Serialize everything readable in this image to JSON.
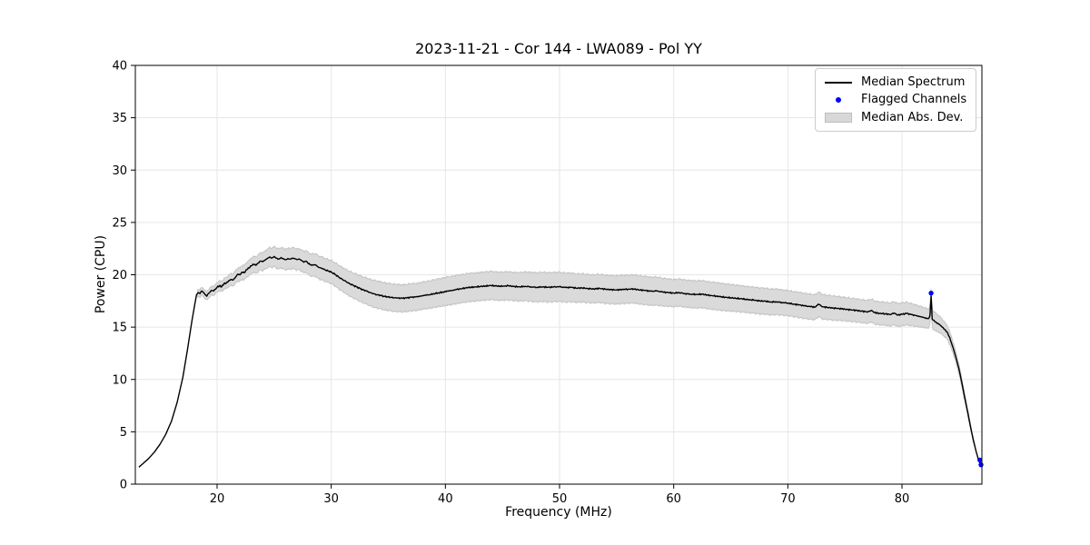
{
  "chart_data": {
    "type": "line",
    "title": "2023-11-21 - Cor 144 - LWA089 - Pol YY",
    "xlabel": "Frequency (MHz)",
    "ylabel": "Power (CPU)",
    "xlim": [
      12.84,
      87.0
    ],
    "ylim": [
      0,
      40
    ],
    "xticks": [
      20,
      30,
      40,
      50,
      60,
      70,
      80
    ],
    "yticks": [
      0,
      5,
      10,
      15,
      20,
      25,
      30,
      35,
      40
    ],
    "grid": true,
    "grid_color": "#e6e6e6",
    "spine_color": "#000000",
    "legend": {
      "position": "upper right",
      "entries": [
        {
          "label": "Median Spectrum",
          "type": "line",
          "color": "#000000"
        },
        {
          "label": "Flagged Channels",
          "type": "marker",
          "color": "#0000ff"
        },
        {
          "label": "Median Abs. Dev.",
          "type": "patch",
          "color": "#d8d8d8"
        }
      ]
    },
    "series": [
      {
        "name": "Median Spectrum",
        "type": "line",
        "color": "#000000",
        "points": [
          [
            13.15,
            1.62
          ],
          [
            13.5,
            1.95
          ],
          [
            14,
            2.45
          ],
          [
            14.5,
            3.05
          ],
          [
            15,
            3.8
          ],
          [
            15.5,
            4.75
          ],
          [
            16,
            6.0
          ],
          [
            16.5,
            7.8
          ],
          [
            17,
            10.2
          ],
          [
            17.4,
            12.8
          ],
          [
            17.8,
            15.6
          ],
          [
            18.05,
            17.2
          ],
          [
            18.2,
            18.1
          ],
          [
            18.35,
            18.3
          ],
          [
            18.5,
            18.2
          ],
          [
            18.65,
            18.45
          ],
          [
            18.8,
            18.3
          ],
          [
            18.95,
            18.1
          ],
          [
            19.1,
            17.95
          ],
          [
            19.25,
            18.2
          ],
          [
            19.4,
            18.35
          ],
          [
            19.55,
            18.5
          ],
          [
            19.7,
            18.45
          ],
          [
            19.85,
            18.6
          ],
          [
            20,
            18.8
          ],
          [
            20.2,
            18.95
          ],
          [
            20.4,
            18.85
          ],
          [
            20.6,
            19.15
          ],
          [
            20.8,
            19.2
          ],
          [
            21,
            19.4
          ],
          [
            21.2,
            19.55
          ],
          [
            21.4,
            19.5
          ],
          [
            21.6,
            19.75
          ],
          [
            21.8,
            20.05
          ],
          [
            22,
            20.0
          ],
          [
            22.2,
            20.25
          ],
          [
            22.4,
            20.2
          ],
          [
            22.6,
            20.5
          ],
          [
            22.8,
            20.65
          ],
          [
            23,
            20.85
          ],
          [
            23.2,
            21.0
          ],
          [
            23.4,
            20.9
          ],
          [
            23.6,
            21.1
          ],
          [
            23.8,
            21.3
          ],
          [
            24,
            21.25
          ],
          [
            24.2,
            21.4
          ],
          [
            24.4,
            21.55
          ],
          [
            24.6,
            21.7
          ],
          [
            24.8,
            21.6
          ],
          [
            25,
            21.75
          ],
          [
            25.2,
            21.6
          ],
          [
            25.4,
            21.5
          ],
          [
            25.6,
            21.65
          ],
          [
            25.8,
            21.55
          ],
          [
            26,
            21.45
          ],
          [
            26.2,
            21.55
          ],
          [
            26.4,
            21.5
          ],
          [
            26.6,
            21.6
          ],
          [
            26.8,
            21.55
          ],
          [
            27,
            21.45
          ],
          [
            27.2,
            21.5
          ],
          [
            27.4,
            21.35
          ],
          [
            27.6,
            21.2
          ],
          [
            27.8,
            21.3
          ],
          [
            28,
            21.05
          ],
          [
            28.3,
            20.9
          ],
          [
            28.6,
            20.95
          ],
          [
            28.9,
            20.7
          ],
          [
            29.2,
            20.6
          ],
          [
            29.5,
            20.45
          ],
          [
            29.8,
            20.35
          ],
          [
            30.1,
            20.2
          ],
          [
            30.4,
            20.0
          ],
          [
            30.7,
            19.75
          ],
          [
            31,
            19.55
          ],
          [
            31.3,
            19.35
          ],
          [
            31.6,
            19.15
          ],
          [
            31.9,
            19.0
          ],
          [
            32.2,
            18.85
          ],
          [
            32.5,
            18.7
          ],
          [
            32.8,
            18.55
          ],
          [
            33.1,
            18.45
          ],
          [
            33.4,
            18.3
          ],
          [
            33.7,
            18.2
          ],
          [
            34,
            18.1
          ],
          [
            34.3,
            18.05
          ],
          [
            34.6,
            17.95
          ],
          [
            34.9,
            17.9
          ],
          [
            35.2,
            17.85
          ],
          [
            35.5,
            17.8
          ],
          [
            35.8,
            17.78
          ],
          [
            36.2,
            17.75
          ],
          [
            36.6,
            17.78
          ],
          [
            37,
            17.85
          ],
          [
            37.4,
            17.88
          ],
          [
            37.8,
            17.95
          ],
          [
            38.2,
            18.05
          ],
          [
            38.6,
            18.1
          ],
          [
            39,
            18.2
          ],
          [
            39.4,
            18.28
          ],
          [
            39.8,
            18.35
          ],
          [
            40.2,
            18.45
          ],
          [
            40.6,
            18.5
          ],
          [
            41,
            18.6
          ],
          [
            41.5,
            18.68
          ],
          [
            42,
            18.78
          ],
          [
            42.5,
            18.82
          ],
          [
            43,
            18.88
          ],
          [
            43.5,
            18.92
          ],
          [
            44,
            18.98
          ],
          [
            44.5,
            18.92
          ],
          [
            45,
            18.9
          ],
          [
            45.5,
            18.95
          ],
          [
            46,
            18.88
          ],
          [
            46.5,
            18.85
          ],
          [
            47,
            18.9
          ],
          [
            47.5,
            18.85
          ],
          [
            48,
            18.8
          ],
          [
            48.5,
            18.85
          ],
          [
            49,
            18.8
          ],
          [
            49.5,
            18.83
          ],
          [
            50,
            18.85
          ],
          [
            50.5,
            18.78
          ],
          [
            51,
            18.8
          ],
          [
            51.5,
            18.72
          ],
          [
            52,
            18.75
          ],
          [
            52.5,
            18.68
          ],
          [
            53,
            18.65
          ],
          [
            53.5,
            18.7
          ],
          [
            54,
            18.62
          ],
          [
            54.5,
            18.58
          ],
          [
            55,
            18.55
          ],
          [
            55.5,
            18.6
          ],
          [
            56,
            18.62
          ],
          [
            56.5,
            18.65
          ],
          [
            57,
            18.55
          ],
          [
            57.5,
            18.5
          ],
          [
            58,
            18.42
          ],
          [
            58.5,
            18.45
          ],
          [
            59,
            18.35
          ],
          [
            59.5,
            18.3
          ],
          [
            60,
            18.25
          ],
          [
            60.5,
            18.3
          ],
          [
            61,
            18.2
          ],
          [
            61.5,
            18.15
          ],
          [
            62,
            18.12
          ],
          [
            62.5,
            18.15
          ],
          [
            63,
            18.05
          ],
          [
            63.5,
            17.98
          ],
          [
            64,
            17.92
          ],
          [
            64.5,
            17.85
          ],
          [
            65,
            17.8
          ],
          [
            65.5,
            17.75
          ],
          [
            66,
            17.7
          ],
          [
            66.5,
            17.62
          ],
          [
            67,
            17.58
          ],
          [
            67.5,
            17.5
          ],
          [
            68,
            17.48
          ],
          [
            68.5,
            17.4
          ],
          [
            69,
            17.42
          ],
          [
            69.5,
            17.35
          ],
          [
            70,
            17.3
          ],
          [
            70.5,
            17.2
          ],
          [
            71,
            17.12
          ],
          [
            71.5,
            17.02
          ],
          [
            72,
            16.95
          ],
          [
            72.4,
            16.9
          ],
          [
            72.7,
            17.2
          ],
          [
            73,
            16.95
          ],
          [
            73.5,
            16.88
          ],
          [
            74,
            16.82
          ],
          [
            74.5,
            16.78
          ],
          [
            75,
            16.72
          ],
          [
            75.5,
            16.65
          ],
          [
            76,
            16.6
          ],
          [
            76.5,
            16.52
          ],
          [
            77,
            16.45
          ],
          [
            77.3,
            16.6
          ],
          [
            77.6,
            16.4
          ],
          [
            78,
            16.32
          ],
          [
            78.5,
            16.28
          ],
          [
            79,
            16.2
          ],
          [
            79.3,
            16.35
          ],
          [
            79.6,
            16.15
          ],
          [
            80,
            16.22
          ],
          [
            80.4,
            16.3
          ],
          [
            80.8,
            16.2
          ],
          [
            81.2,
            16.1
          ],
          [
            81.6,
            16.0
          ],
          [
            82,
            15.9
          ],
          [
            82.3,
            15.8
          ],
          [
            82.45,
            16.1
          ],
          [
            82.55,
            17.95
          ],
          [
            82.65,
            15.75
          ],
          [
            83,
            15.45
          ],
          [
            83.3,
            15.25
          ],
          [
            83.6,
            14.95
          ],
          [
            84,
            14.45
          ],
          [
            84.25,
            13.75
          ],
          [
            84.5,
            12.95
          ],
          [
            84.75,
            12.0
          ],
          [
            85,
            10.95
          ],
          [
            85.25,
            9.65
          ],
          [
            85.5,
            8.25
          ],
          [
            85.75,
            6.9
          ],
          [
            86,
            5.5
          ],
          [
            86.25,
            4.2
          ],
          [
            86.5,
            3.1
          ],
          [
            86.7,
            2.35
          ],
          [
            86.9,
            1.85
          ]
        ]
      },
      {
        "name": "Median Abs. Dev.",
        "type": "band",
        "color": "#d8d8d8",
        "edge_color": "#bdbdbd",
        "x_start": 18.3,
        "x_end": 86.4,
        "half_width_points": [
          [
            18.3,
            0.35
          ],
          [
            19,
            0.4
          ],
          [
            20,
            0.45
          ],
          [
            21,
            0.55
          ],
          [
            22,
            0.65
          ],
          [
            23,
            0.75
          ],
          [
            24,
            0.85
          ],
          [
            25,
            0.95
          ],
          [
            26,
            1.0
          ],
          [
            27,
            1.0
          ],
          [
            28,
            1.05
          ],
          [
            29,
            1.1
          ],
          [
            30,
            1.1
          ],
          [
            31,
            1.15
          ],
          [
            32,
            1.2
          ],
          [
            33,
            1.25
          ],
          [
            34,
            1.3
          ],
          [
            36,
            1.3
          ],
          [
            38,
            1.3
          ],
          [
            40,
            1.35
          ],
          [
            42,
            1.35
          ],
          [
            44,
            1.35
          ],
          [
            46,
            1.35
          ],
          [
            48,
            1.4
          ],
          [
            50,
            1.4
          ],
          [
            52,
            1.35
          ],
          [
            54,
            1.35
          ],
          [
            56,
            1.35
          ],
          [
            58,
            1.35
          ],
          [
            60,
            1.3
          ],
          [
            62,
            1.3
          ],
          [
            64,
            1.3
          ],
          [
            66,
            1.25
          ],
          [
            68,
            1.25
          ],
          [
            70,
            1.2
          ],
          [
            72,
            1.2
          ],
          [
            74,
            1.15
          ],
          [
            76,
            1.1
          ],
          [
            78,
            1.1
          ],
          [
            80,
            1.1
          ],
          [
            81,
            1.05
          ],
          [
            82,
            0.95
          ],
          [
            83,
            0.85
          ],
          [
            83.5,
            0.75
          ],
          [
            84,
            0.65
          ],
          [
            84.5,
            0.55
          ],
          [
            85,
            0.45
          ],
          [
            85.5,
            0.35
          ],
          [
            86,
            0.25
          ],
          [
            86.4,
            0.12
          ]
        ]
      }
    ],
    "flagged_channels": {
      "name": "Flagged Channels",
      "color": "#0000ff",
      "points": [
        [
          82.55,
          18.25
        ],
        [
          86.82,
          2.3
        ],
        [
          86.92,
          1.85
        ]
      ]
    }
  }
}
